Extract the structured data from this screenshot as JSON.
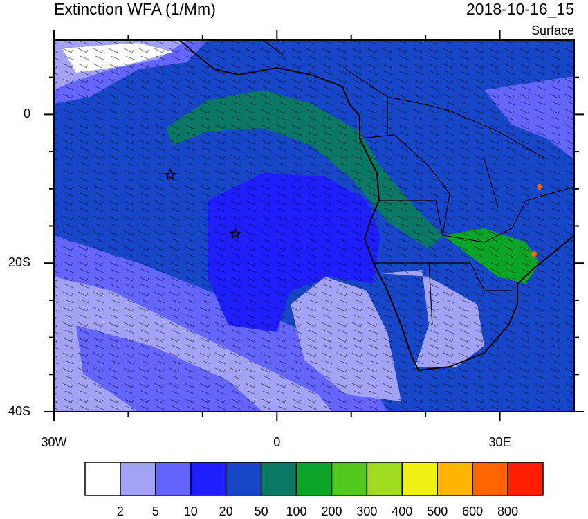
{
  "header": {
    "title": "Extinction WFA (1/Mm)",
    "datetime": "2018-10-16_15",
    "level": "Surface"
  },
  "map": {
    "xlim": [
      -30,
      40
    ],
    "ylim": [
      -40,
      10
    ],
    "xticks": [
      {
        "value": -30,
        "label": "30W"
      },
      0,
      {
        "value": 30,
        "label": "30E"
      }
    ],
    "yticks": [
      0,
      {
        "value": -20,
        "label": "20S"
      },
      {
        "value": -40,
        "label": "40S"
      }
    ],
    "minor_xticks": [
      -20,
      -10,
      10,
      20
    ],
    "minor_yticks": [
      5,
      -5,
      -10,
      -15,
      -25,
      -30,
      -35
    ]
  },
  "colorbar": {
    "levels": [
      2,
      5,
      10,
      20,
      50,
      100,
      200,
      300,
      400,
      500,
      600,
      800
    ],
    "colors": [
      "#ffffff",
      "#a3a3f5",
      "#6464ff",
      "#1e1eff",
      "#1846c8",
      "#0a7864",
      "#0aa528",
      "#50c81e",
      "#a0dc1e",
      "#f0f014",
      "#ffb400",
      "#ff6400",
      "#ff1e00"
    ]
  }
}
